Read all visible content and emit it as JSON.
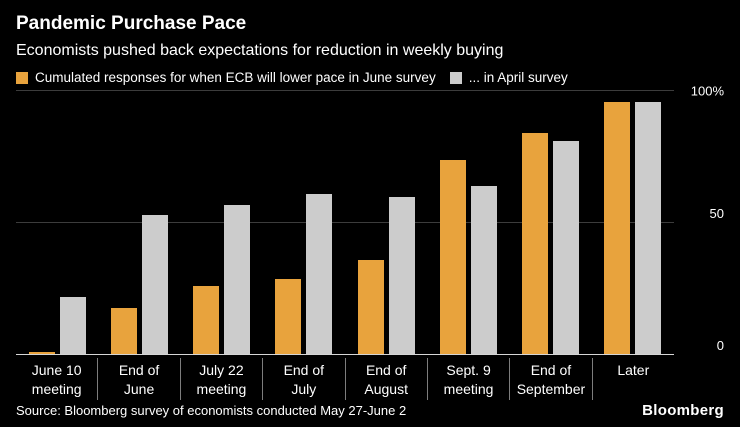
{
  "header": {
    "title": "Pandemic Purchase Pace",
    "subtitle": "Economists pushed back expectations for reduction in weekly buying"
  },
  "legend": {
    "series1_label": "Cumulated responses for when ECB will lower pace in June survey",
    "series2_label": "... in April survey"
  },
  "chart_data": {
    "type": "bar",
    "categories": [
      [
        "June 10",
        "meeting"
      ],
      [
        "End of",
        "June"
      ],
      [
        "July 22",
        "meeting"
      ],
      [
        "End of",
        "July"
      ],
      [
        "End of",
        "August"
      ],
      [
        "Sept. 9",
        "meeting"
      ],
      [
        "End of",
        "September"
      ],
      [
        "Later"
      ]
    ],
    "series": [
      {
        "name": "June survey",
        "color": "#E8A33D",
        "values": [
          1,
          18,
          26,
          29,
          36,
          74,
          84,
          96
        ]
      },
      {
        "name": "April survey",
        "color": "#CCCCCC",
        "values": [
          22,
          53,
          57,
          61,
          60,
          64,
          81,
          96
        ]
      }
    ],
    "title": "Pandemic Purchase Pace",
    "xlabel": "",
    "ylabel": "",
    "ylim": [
      0,
      100
    ],
    "yticks": [
      {
        "value": 100,
        "label": "100%"
      },
      {
        "value": 50,
        "label": "50"
      },
      {
        "value": 0,
        "label": "0"
      }
    ],
    "grid": true,
    "legend_position": "top"
  },
  "colors": {
    "background": "#000000",
    "text": "#FFFFFF",
    "june_series": "#E8A33D",
    "april_series": "#CCCCCC",
    "gridline": "#3C3C3C",
    "baseline": "#D6D6D6"
  },
  "footer": {
    "source": "Source: Bloomberg survey of economists conducted May 27-June 2",
    "brand": "Bloomberg"
  }
}
